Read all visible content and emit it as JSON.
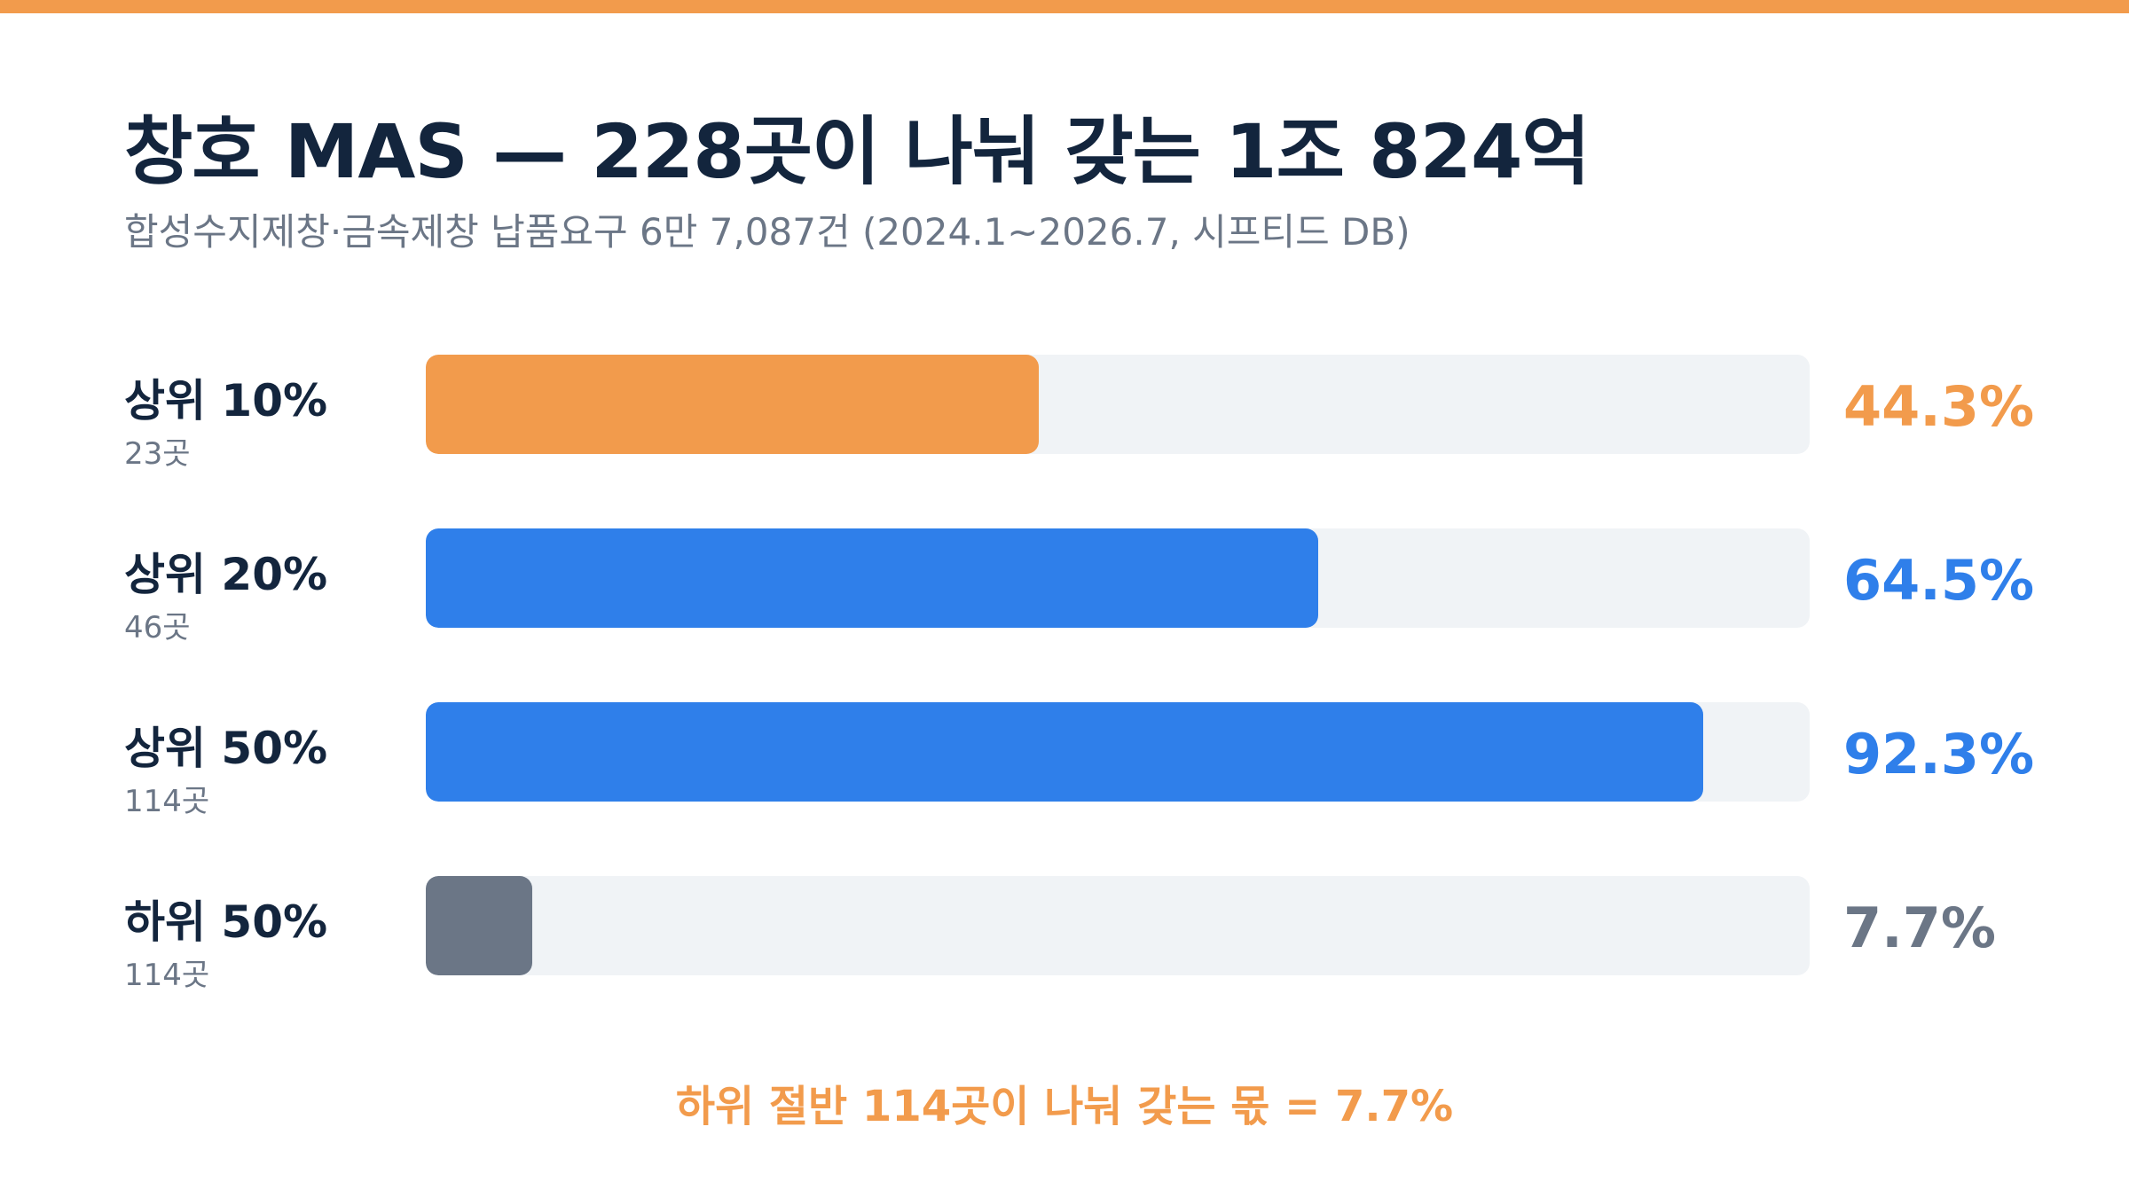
{
  "colors": {
    "accent": "#f29b4c",
    "blue": "#2f7fea",
    "gray": "#6b7686",
    "track": "#f0f3f6",
    "title": "#13253d"
  },
  "title": "창호 MAS — 228곳이 나눠 갖는 1조 824억",
  "subtitle": "합성수지제창·금속제창 납품요구 6만 7,087건 (2024.1~2026.7, 시프티드 DB)",
  "chart_data": {
    "type": "bar",
    "orientation": "horizontal",
    "xlim": [
      0,
      100
    ],
    "categories": [
      "상위 10%",
      "상위 20%",
      "상위 50%",
      "하위 50%"
    ],
    "counts": [
      "23곳",
      "46곳",
      "114곳",
      "114곳"
    ],
    "values": [
      44.3,
      64.5,
      92.3,
      7.7
    ],
    "value_labels": [
      "44.3%",
      "64.5%",
      "92.3%",
      "7.7%"
    ],
    "bar_colors": [
      "#f29b4c",
      "#2f7fea",
      "#2f7fea",
      "#6b7686"
    ]
  },
  "footnote": "하위 절반 114곳이 나눠 갖는 몫 = 7.7%"
}
